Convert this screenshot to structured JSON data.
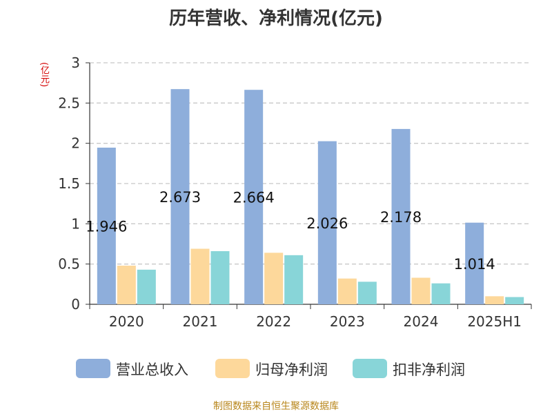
{
  "chart_data": {
    "type": "bar",
    "title": "历年营收、净利情况(亿元)",
    "ylabel": "(亿元)",
    "xlabel": "",
    "categories": [
      "2020",
      "2021",
      "2022",
      "2023",
      "2024",
      "2025H1"
    ],
    "ylim": [
      0,
      3
    ],
    "yticks": [
      "0",
      "0.5",
      "1",
      "1.5",
      "2",
      "2.5",
      "3"
    ],
    "grid": true,
    "legend_position": "bottom",
    "series": [
      {
        "name": "营业总收入",
        "color": "#8eaedb",
        "values": [
          1.946,
          2.673,
          2.664,
          2.026,
          2.178,
          1.014
        ],
        "data_labels": [
          "1.946",
          "2.673",
          "2.664",
          "2.026",
          "2.178",
          "1.014"
        ]
      },
      {
        "name": "归母净利润",
        "color": "#fdd89b",
        "values": [
          0.48,
          0.69,
          0.64,
          0.32,
          0.33,
          0.1
        ]
      },
      {
        "name": "扣非净利润",
        "color": "#88d5d8",
        "values": [
          0.43,
          0.66,
          0.61,
          0.28,
          0.26,
          0.09
        ]
      }
    ],
    "source": "制图数据来自恒生聚源数据库"
  }
}
